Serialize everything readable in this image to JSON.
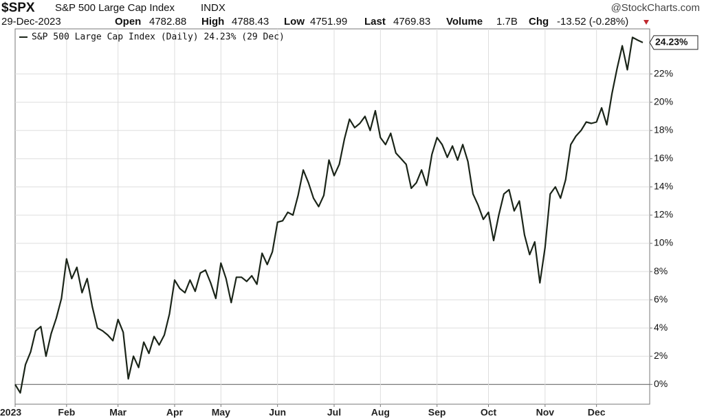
{
  "chart_data": {
    "type": "line",
    "header": {
      "symbol": "$SPX",
      "name": "S&P 500 Large Cap Index",
      "exchange": "INDX",
      "source": "@StockCharts.com",
      "date": "29-Dec-2023",
      "open_label": "Open",
      "open": "4782.88",
      "high_label": "High",
      "high": "4788.43",
      "low_label": "Low",
      "low": "4751.99",
      "last_label": "Last",
      "last": "4769.83",
      "volume_label": "Volume",
      "volume": "1.7B",
      "chg_label": "Chg",
      "chg": "-13.52 (-0.28%)"
    },
    "categories": [
      "2023",
      null,
      null,
      null,
      null,
      null,
      null,
      null,
      null,
      null,
      "Feb",
      null,
      null,
      null,
      null,
      null,
      null,
      null,
      null,
      null,
      "Mar",
      null,
      null,
      null,
      null,
      null,
      null,
      null,
      null,
      null,
      null,
      "Apr",
      null,
      null,
      null,
      null,
      null,
      null,
      null,
      null,
      "May",
      null,
      null,
      null,
      null,
      null,
      null,
      null,
      null,
      null,
      null,
      "Jun",
      null,
      null,
      null,
      null,
      null,
      null,
      null,
      null,
      null,
      null,
      "Jul",
      null,
      null,
      null,
      null,
      null,
      null,
      null,
      null,
      "Aug",
      null,
      null,
      null,
      null,
      null,
      null,
      null,
      null,
      null,
      null,
      "Sep",
      null,
      null,
      null,
      null,
      null,
      null,
      null,
      null,
      null,
      "Oct",
      null,
      null,
      null,
      null,
      null,
      null,
      null,
      null,
      null,
      null,
      "Nov",
      null,
      null,
      null,
      null,
      null,
      null,
      null,
      null,
      null,
      "Dec",
      null,
      null,
      null,
      null,
      null,
      null,
      null,
      null,
      null
    ],
    "series": [
      {
        "name": "S&P 500 Large Cap Index (Daily) 24.23% (29 Dec)",
        "color": "#1a2418",
        "values": [
          0,
          -0.6,
          1.4,
          2.3,
          3.8,
          4.1,
          2.0,
          3.6,
          4.7,
          6.1,
          8.9,
          7.5,
          8.3,
          6.5,
          7.5,
          5.5,
          4.0,
          3.8,
          3.5,
          3.1,
          4.6,
          3.7,
          0.4,
          2.0,
          1.2,
          3.0,
          2.2,
          3.4,
          2.8,
          3.5,
          5.0,
          7.4,
          6.8,
          6.5,
          7.4,
          6.6,
          7.9,
          8.1,
          7.2,
          6.1,
          8.6,
          7.5,
          5.8,
          7.6,
          7.6,
          7.3,
          7.7,
          7.1,
          9.3,
          8.5,
          9.4,
          11.5,
          11.6,
          12.2,
          12.0,
          13.4,
          15.2,
          14.3,
          13.2,
          12.6,
          13.4,
          15.9,
          14.8,
          15.6,
          17.4,
          18.8,
          18.2,
          18.5,
          19.0,
          18.0,
          19.4,
          17.5,
          17.0,
          17.8,
          16.4,
          16.0,
          15.6,
          13.9,
          14.3,
          15.2,
          14.1,
          16.3,
          17.5,
          17.0,
          16.1,
          16.9,
          15.9,
          17.0,
          15.8,
          13.5,
          12.7,
          11.7,
          12.2,
          10.2,
          12.0,
          13.5,
          13.8,
          12.3,
          13.0,
          10.6,
          9.2,
          10.1,
          7.2,
          9.7,
          13.5,
          14.0,
          13.2,
          14.5,
          17.0,
          17.6,
          18.0,
          18.6,
          18.5,
          18.6,
          19.6,
          18.4,
          20.6,
          22.4,
          24.0,
          22.3,
          24.6,
          24.4,
          24.23
        ],
        "last_value_label": "24.23%"
      }
    ],
    "ylim": [
      -1.4,
      25.2
    ],
    "yticks": [
      {
        "value": 0,
        "label": "0%"
      },
      {
        "value": 2,
        "label": "2%"
      },
      {
        "value": 4,
        "label": "4%"
      },
      {
        "value": 6,
        "label": "6%"
      },
      {
        "value": 8,
        "label": "8%"
      },
      {
        "value": 10,
        "label": "10%"
      },
      {
        "value": 12,
        "label": "12%"
      },
      {
        "value": 14,
        "label": "14%"
      },
      {
        "value": 16,
        "label": "16%"
      },
      {
        "value": 18,
        "label": "18%"
      },
      {
        "value": 20,
        "label": "20%"
      },
      {
        "value": 22,
        "label": "22%"
      }
    ],
    "grid": true
  }
}
